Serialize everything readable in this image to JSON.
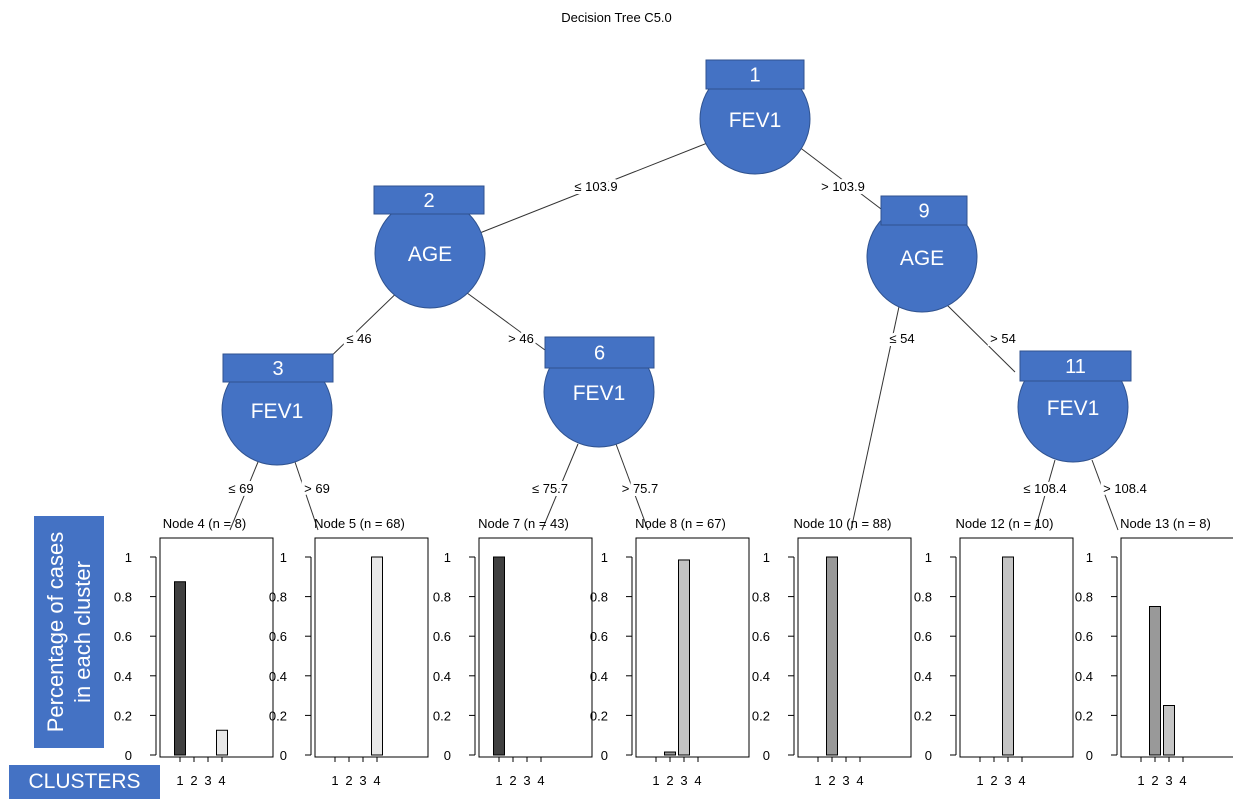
{
  "title": "Decision Tree C5.0",
  "colors": {
    "node_fill": "#4472c4",
    "node_text": "#ffffff",
    "bar_cluster_1": "#404040",
    "bar_cluster_2": "#999999",
    "bar_cluster_3": "#c4c4c4",
    "bar_cluster_4": "#e8e8e8"
  },
  "inner_nodes": [
    {
      "id": "1",
      "label": "FEV1"
    },
    {
      "id": "2",
      "label": "AGE"
    },
    {
      "id": "3",
      "label": "FEV1"
    },
    {
      "id": "6",
      "label": "FEV1"
    },
    {
      "id": "9",
      "label": "AGE"
    },
    {
      "id": "11",
      "label": "FEV1"
    }
  ],
  "edges": [
    {
      "from": "1",
      "to": "2",
      "label": "≤ 103.9"
    },
    {
      "from": "1",
      "to": "9",
      "label": "> 103.9"
    },
    {
      "from": "2",
      "to": "3",
      "label": "≤ 46"
    },
    {
      "from": "2",
      "to": "6",
      "label": "> 46"
    },
    {
      "from": "3",
      "to": "4",
      "label": "≤ 69"
    },
    {
      "from": "3",
      "to": "5",
      "label": "> 69"
    },
    {
      "from": "6",
      "to": "7",
      "label": "≤ 75.7"
    },
    {
      "from": "6",
      "to": "8",
      "label": "> 75.7"
    },
    {
      "from": "9",
      "to": "10",
      "label": "≤ 54"
    },
    {
      "from": "9",
      "to": "11",
      "label": "> 54"
    },
    {
      "from": "11",
      "to": "12",
      "label": "≤ 108.4"
    },
    {
      "from": "11",
      "to": "13",
      "label": "> 108.4"
    }
  ],
  "leaf_axis": {
    "ylim": [
      0,
      1
    ],
    "yticks": [
      "0",
      "0.2",
      "0.4",
      "0.6",
      "0.8",
      "1"
    ],
    "xticks": [
      "1",
      "2",
      "3",
      "4"
    ]
  },
  "leaves": [
    {
      "id": "4",
      "title": "Node 4 (n = 8)",
      "values": [
        0.875,
        0,
        0,
        0.125
      ]
    },
    {
      "id": "5",
      "title": "Node 5 (n = 68)",
      "values": [
        0,
        0,
        0,
        1
      ]
    },
    {
      "id": "7",
      "title": "Node 7 (n = 43)",
      "values": [
        1,
        0,
        0,
        0
      ]
    },
    {
      "id": "8",
      "title": "Node 8 (n = 67)",
      "values": [
        0,
        0.015,
        0.985,
        0
      ]
    },
    {
      "id": "10",
      "title": "Node 10 (n = 88)",
      "values": [
        0,
        1,
        0,
        0
      ]
    },
    {
      "id": "12",
      "title": "Node 12 (n = 10)",
      "values": [
        0,
        0,
        1,
        0
      ]
    },
    {
      "id": "13",
      "title": "Node 13 (n = 8)",
      "values": [
        0,
        0.75,
        0.25,
        0
      ]
    }
  ],
  "annotations": {
    "ylabel_line1": "Percentage of cases",
    "ylabel_line2": "in each cluster",
    "xlabel": "CLUSTERS"
  }
}
